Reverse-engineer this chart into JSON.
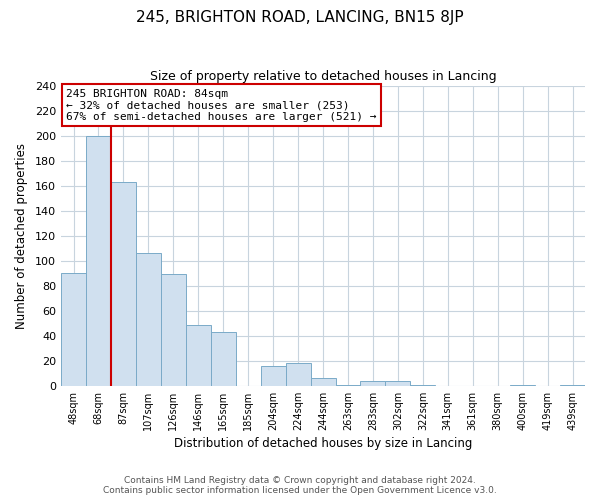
{
  "title": "245, BRIGHTON ROAD, LANCING, BN15 8JP",
  "subtitle": "Size of property relative to detached houses in Lancing",
  "xlabel": "Distribution of detached houses by size in Lancing",
  "ylabel": "Number of detached properties",
  "bar_labels": [
    "48sqm",
    "68sqm",
    "87sqm",
    "107sqm",
    "126sqm",
    "146sqm",
    "165sqm",
    "185sqm",
    "204sqm",
    "224sqm",
    "244sqm",
    "263sqm",
    "283sqm",
    "302sqm",
    "322sqm",
    "341sqm",
    "361sqm",
    "380sqm",
    "400sqm",
    "419sqm",
    "439sqm"
  ],
  "bar_values": [
    90,
    200,
    163,
    106,
    89,
    49,
    43,
    0,
    16,
    18,
    6,
    1,
    4,
    4,
    1,
    0,
    0,
    0,
    1,
    0,
    1
  ],
  "bar_color": "#d0e0ef",
  "bar_edge_color": "#7aaac8",
  "vline_x_idx": 2,
  "vline_color": "#cc0000",
  "annotation_text": "245 BRIGHTON ROAD: 84sqm\n← 32% of detached houses are smaller (253)\n67% of semi-detached houses are larger (521) →",
  "annotation_box_color": "#ffffff",
  "annotation_box_edge": "#cc0000",
  "ylim": [
    0,
    240
  ],
  "yticks": [
    0,
    20,
    40,
    60,
    80,
    100,
    120,
    140,
    160,
    180,
    200,
    220,
    240
  ],
  "footer1": "Contains HM Land Registry data © Crown copyright and database right 2024.",
  "footer2": "Contains public sector information licensed under the Open Government Licence v3.0.",
  "bg_color": "#ffffff",
  "grid_color": "#c8d4de"
}
